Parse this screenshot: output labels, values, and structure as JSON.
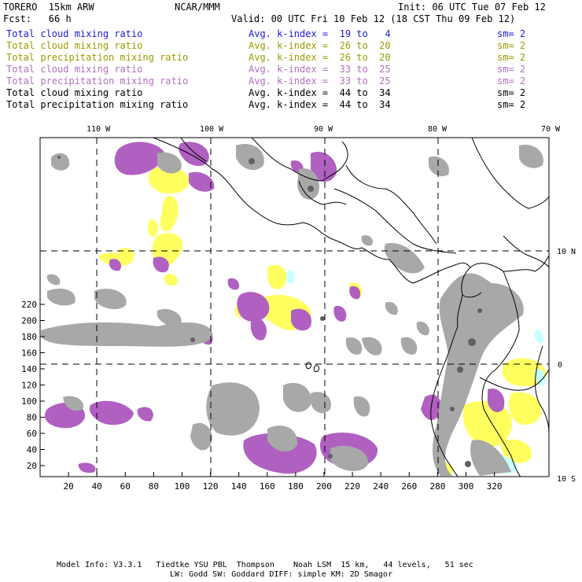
{
  "header": {
    "model": "TORERO  15km ARW",
    "org": "NCAR/MMM",
    "init": "Init: 06 UTC Tue 07 Feb 12",
    "fcst": "Fcst:   66 h",
    "valid": "Valid: 00 UTC Fri 10 Feb 12 (18 CST Thu 09 Feb 12)"
  },
  "legend": [
    {
      "field": "Total cloud mixing ratio",
      "kindex": "Avg. k-index =  19 to   4",
      "sm": "sm= 2",
      "color": "#1a1adb"
    },
    {
      "field": "Total cloud mixing ratio",
      "kindex": "Avg. k-index =  26 to  20",
      "sm": "sm= 2",
      "color": "#9a9a00"
    },
    {
      "field": "Total precipitation mixing ratio",
      "kindex": "Avg. k-index =  26 to  20",
      "sm": "sm= 2",
      "color": "#9a9a00"
    },
    {
      "field": "Total cloud mixing ratio",
      "kindex": "Avg. k-index =  33 to  25",
      "sm": "sm= 2",
      "color": "#b070c0"
    },
    {
      "field": "Total precipitation mixing ratio",
      "kindex": "Avg. k-index =  33 to  25",
      "sm": "sm= 2",
      "color": "#b070c0"
    },
    {
      "field": "Total cloud mixing ratio",
      "kindex": "Avg. k-index =  44 to  34",
      "sm": "sm= 2",
      "color": "#000000"
    },
    {
      "field": "Total precipitation mixing ratio",
      "kindex": "Avg. k-index =  44 to  34",
      "sm": "sm= 2",
      "color": "#000000"
    }
  ],
  "map": {
    "lon_labels": [
      "110 W",
      "100 W",
      "90 W",
      "80 W",
      "70 W"
    ],
    "lat_labels": [
      "10 N",
      "0",
      "10 S"
    ],
    "x_ticks": [
      "20",
      "40",
      "60",
      "80",
      "100",
      "120",
      "140",
      "160",
      "180",
      "200",
      "220",
      "240",
      "260",
      "280",
      "300",
      "320"
    ],
    "y_ticks": [
      "20",
      "40",
      "60",
      "80",
      "100",
      "120",
      "140",
      "160",
      "180",
      "200",
      "220"
    ],
    "colors": {
      "gray": "#a8a8a8",
      "dark": "#606060",
      "purple": "#b060c0",
      "yellow": "#ffff60",
      "cyan": "#c8ffff"
    }
  },
  "footer": {
    "line1": "Model Info: V3.3.1   Tiedtke YSU PBL  Thompson    Noah LSM  15 km,   44 levels,   51 sec",
    "line2": "LW: Godd SW: Goddard DIFF: simple KM: 2D Smagor"
  }
}
